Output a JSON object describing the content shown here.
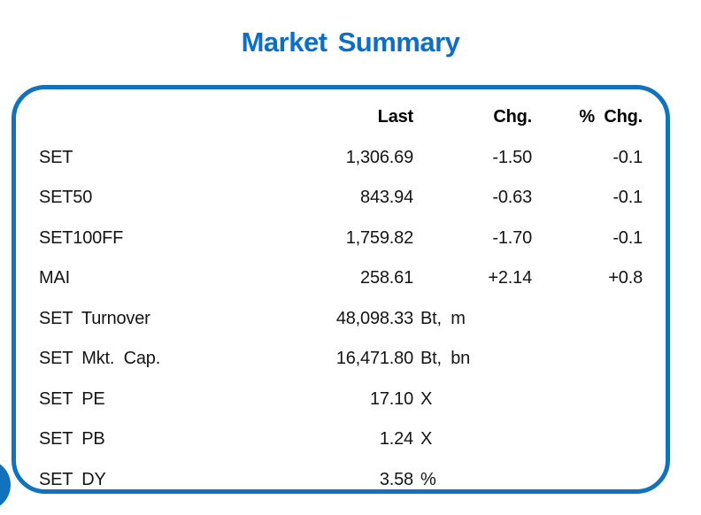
{
  "page": {
    "title": "Market Summary",
    "accent_color": "#1173bd",
    "title_color": "#0d6ec6",
    "text_color": "#141414"
  },
  "table": {
    "headers": {
      "last": "Last",
      "chg": "Chg.",
      "pct_chg": "% Chg."
    },
    "rows": [
      {
        "label": "SET",
        "last": "1,306.69",
        "unit": "",
        "chg": "-1.50",
        "pct_chg": "-0.1"
      },
      {
        "label": "SET50",
        "last": "843.94",
        "unit": "",
        "chg": "-0.63",
        "pct_chg": "-0.1"
      },
      {
        "label": "SET100FF",
        "last": "1,759.82",
        "unit": "",
        "chg": "-1.70",
        "pct_chg": "-0.1"
      },
      {
        "label": "MAI",
        "last": "258.61",
        "unit": "",
        "chg": "+2.14",
        "pct_chg": "+0.8"
      },
      {
        "label": "SET Turnover",
        "last": "48,098.33",
        "unit": "Bt, m",
        "chg": "",
        "pct_chg": ""
      },
      {
        "label": "SET Mkt. Cap.",
        "last": "16,471.80",
        "unit": "Bt, bn",
        "chg": "",
        "pct_chg": ""
      },
      {
        "label": "SET PE",
        "last": "17.10",
        "unit": "X",
        "chg": "",
        "pct_chg": ""
      },
      {
        "label": "SET PB",
        "last": "1.24",
        "unit": "X",
        "chg": "",
        "pct_chg": ""
      },
      {
        "label": "SET DY",
        "last": "3.58",
        "unit": "%",
        "chg": "",
        "pct_chg": ""
      }
    ]
  },
  "chart_data": {
    "type": "table",
    "title": "Market Summary",
    "columns": [
      "",
      "Last",
      "Chg.",
      "% Chg."
    ],
    "rows": [
      [
        "SET",
        "1,306.69",
        "-1.50",
        "-0.1"
      ],
      [
        "SET50",
        "843.94",
        "-0.63",
        "-0.1"
      ],
      [
        "SET100FF",
        "1,759.82",
        "-1.70",
        "-0.1"
      ],
      [
        "MAI",
        "258.61",
        "+2.14",
        "+0.8"
      ],
      [
        "SET Turnover",
        "48,098.33 Bt, m",
        "",
        ""
      ],
      [
        "SET Mkt. Cap.",
        "16,471.80 Bt, bn",
        "",
        ""
      ],
      [
        "SET PE",
        "17.10 X",
        "",
        ""
      ],
      [
        "SET PB",
        "1.24 X",
        "",
        ""
      ],
      [
        "SET DY",
        "3.58 %",
        "",
        ""
      ]
    ]
  }
}
